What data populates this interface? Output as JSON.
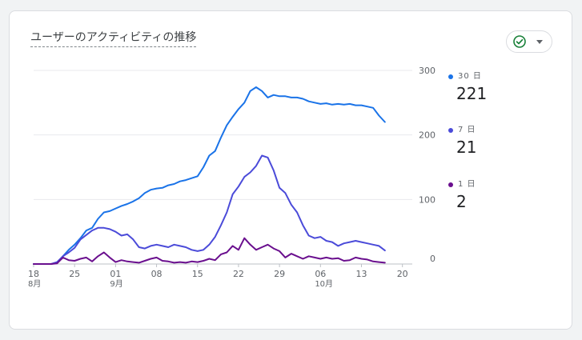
{
  "card": {
    "title": "ユーザーのアクティビティの推移",
    "status_icon": "check-circle-icon",
    "dropdown_icon": "caret-down-icon"
  },
  "legend": [
    {
      "label": "30 日",
      "value": "221",
      "color": "#1a73e8"
    },
    {
      "label": "7 日",
      "value": "21",
      "color": "#4b4bd9"
    },
    {
      "label": "1 日",
      "value": "2",
      "color": "#6a0f8e"
    }
  ],
  "chart_data": {
    "type": "line",
    "x_ticks": [
      {
        "day": 0,
        "label": "18",
        "sub": "8月"
      },
      {
        "day": 7,
        "label": "25"
      },
      {
        "day": 14,
        "label": "01",
        "sub": "9月"
      },
      {
        "day": 21,
        "label": "08"
      },
      {
        "day": 28,
        "label": "15"
      },
      {
        "day": 35,
        "label": "22"
      },
      {
        "day": 42,
        "label": "29"
      },
      {
        "day": 49,
        "label": "06",
        "sub": "10月"
      },
      {
        "day": 56,
        "label": "13"
      },
      {
        "day": 63,
        "label": "20"
      }
    ],
    "y_ticks": [
      0,
      100,
      200,
      300
    ],
    "ylim": [
      0,
      300
    ],
    "xlim": [
      0,
      64
    ],
    "grid": true,
    "series": [
      {
        "color": "#1a73e8",
        "values": [
          0,
          0,
          0,
          0,
          2,
          12,
          22,
          30,
          40,
          52,
          56,
          70,
          80,
          82,
          86,
          90,
          93,
          97,
          102,
          110,
          115,
          117,
          118,
          122,
          124,
          128,
          130,
          133,
          136,
          150,
          168,
          175,
          196,
          215,
          228,
          240,
          250,
          268,
          274,
          268,
          258,
          262,
          260,
          260,
          258,
          258,
          256,
          252,
          250,
          248,
          249,
          247,
          248,
          247,
          248,
          246,
          246,
          244,
          242,
          230,
          220
        ]
      },
      {
        "color": "#4b4bd9",
        "values": [
          0,
          0,
          0,
          0,
          3,
          12,
          18,
          25,
          38,
          45,
          52,
          56,
          56,
          54,
          50,
          44,
          46,
          38,
          26,
          24,
          28,
          30,
          28,
          26,
          30,
          28,
          26,
          22,
          20,
          22,
          30,
          42,
          60,
          80,
          108,
          120,
          135,
          142,
          152,
          168,
          165,
          145,
          118,
          110,
          92,
          80,
          60,
          44,
          40,
          42,
          36,
          34,
          28,
          32,
          34,
          36,
          34,
          32,
          30,
          28,
          21
        ]
      },
      {
        "color": "#6a0f8e",
        "values": [
          0,
          0,
          0,
          0,
          1,
          10,
          6,
          5,
          8,
          10,
          4,
          12,
          18,
          10,
          3,
          6,
          4,
          3,
          2,
          5,
          8,
          10,
          5,
          4,
          2,
          3,
          2,
          4,
          3,
          5,
          8,
          6,
          15,
          18,
          28,
          22,
          40,
          30,
          22,
          26,
          30,
          24,
          20,
          10,
          16,
          12,
          8,
          12,
          10,
          8,
          10,
          8,
          9,
          5,
          6,
          10,
          8,
          7,
          4,
          3,
          2
        ]
      }
    ]
  }
}
